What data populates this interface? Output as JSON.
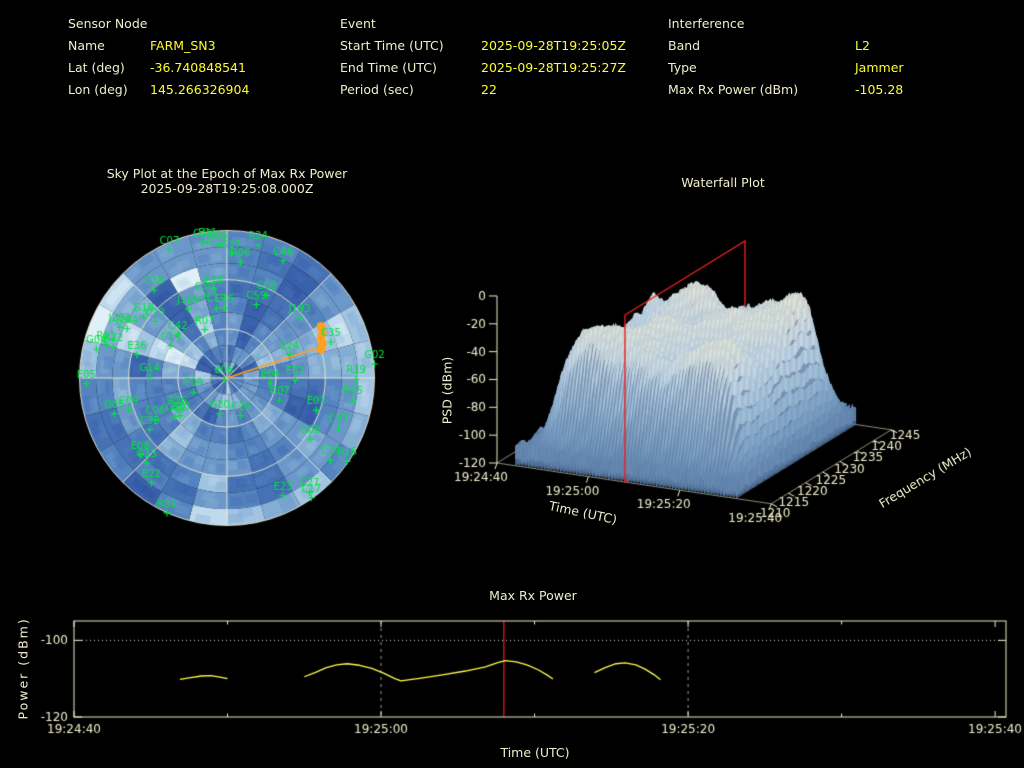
{
  "header": {
    "sections": [
      {
        "title": "Sensor Node",
        "rows": [
          {
            "label": "Name",
            "value": "FARM_SN3"
          },
          {
            "label": "Lat (deg)",
            "value": "-36.740848541"
          },
          {
            "label": "Lon (deg)",
            "value": "145.266326904"
          }
        ]
      },
      {
        "title": "Event",
        "rows": [
          {
            "label": "Start Time (UTC)",
            "value": "2025-09-28T19:25:05Z"
          },
          {
            "label": "End Time (UTC)",
            "value": "2025-09-28T19:25:27Z"
          },
          {
            "label": "Period (sec)",
            "value": "22"
          }
        ]
      },
      {
        "title": "Interference",
        "rows": [
          {
            "label": "Band",
            "value": "L2"
          },
          {
            "label": "Type",
            "value": "Jammer"
          },
          {
            "label": "Max Rx Power (dBm)",
            "value": "-105.28"
          }
        ]
      }
    ]
  },
  "colors": {
    "label_text": "#f0eecb",
    "value_text": "#fdfd2f",
    "axis": "#eeeccb",
    "satellite_green": "#00e541",
    "jammer_orange": "#ffa01e",
    "event_red": "#ea1e1e",
    "line_yellow": "#fcfc4a"
  },
  "chart_data": [
    {
      "type": "scatter",
      "title": "Sky Plot at the Epoch of Max Rx Power",
      "epoch_label": "2025-09-28T19:25:08.000Z",
      "projection": "polar-sky",
      "elevation_rings_deg": [
        0,
        30,
        60
      ],
      "azimuth_spokes_deg": [
        0,
        45,
        90,
        135,
        180,
        225,
        270,
        315
      ],
      "jammer": {
        "line_from": [
          0,
          0
        ],
        "line_to": [
          0.641,
          -0.214
        ],
        "blob": [
          0.64,
          -0.27
        ]
      },
      "mosaic": {
        "seed": 1337,
        "sectors": 24,
        "rings": 9,
        "palette": [
          "#27418f",
          "#30519f",
          "#3a62ac",
          "#4672b5",
          "#5583bf",
          "#6b97c9",
          "#84add4",
          "#a0c4e1",
          "#c0daed",
          "#e0f0f8"
        ],
        "streaks": [
          {
            "az": 65,
            "w": 12,
            "boost": 0.45
          },
          {
            "az": 300,
            "w": 11,
            "boost": 0.22
          },
          {
            "az": 183,
            "w": 9,
            "boost": 0.25
          },
          {
            "az": 345,
            "w": 8,
            "boost": 0.2
          },
          {
            "az": 135,
            "w": 9,
            "boost": 0.12
          },
          {
            "az": 225,
            "w": 8,
            "boost": 0.15
          }
        ]
      },
      "satellites": [
        {
          "id": "C07",
          "x": -0.39,
          "y": -0.87
        },
        {
          "id": "C49",
          "x": -0.163,
          "y": -0.915
        },
        {
          "id": "E11",
          "x": -0.131,
          "y": -0.92
        },
        {
          "id": "C05",
          "x": -0.061,
          "y": -0.904
        },
        {
          "id": "G17",
          "x": 0.027,
          "y": -0.843
        },
        {
          "id": "R24",
          "x": 0.21,
          "y": -0.899
        },
        {
          "id": "R06",
          "x": 0.092,
          "y": -0.786
        },
        {
          "id": "C44",
          "x": 0.379,
          "y": -0.795
        },
        {
          "id": "C38",
          "x": -0.495,
          "y": -0.596
        },
        {
          "id": "E18",
          "x": -0.088,
          "y": -0.603
        },
        {
          "id": "C50",
          "x": -0.152,
          "y": -0.556
        },
        {
          "id": "J199",
          "x": -0.262,
          "y": -0.468
        },
        {
          "id": "C19",
          "x": -0.07,
          "y": -0.474
        },
        {
          "id": "C16",
          "x": -0.018,
          "y": -0.474
        },
        {
          "id": "G09",
          "x": 0.27,
          "y": -0.56
        },
        {
          "id": "C59",
          "x": 0.199,
          "y": -0.497
        },
        {
          "id": "J193",
          "x": 0.492,
          "y": -0.407
        },
        {
          "id": "C35",
          "x": 0.705,
          "y": -0.244
        },
        {
          "id": "E24",
          "x": 0.424,
          "y": -0.158
        },
        {
          "id": "G02",
          "x": 1.0,
          "y": -0.095
        },
        {
          "id": "R19",
          "x": 0.875,
          "y": 0.01
        },
        {
          "id": "R25",
          "x": 0.854,
          "y": 0.151
        },
        {
          "id": "E31",
          "x": 0.463,
          "y": 0.016
        },
        {
          "id": "E04",
          "x": 0.294,
          "y": 0.034
        },
        {
          "id": "G07",
          "x": 0.357,
          "y": 0.151
        },
        {
          "id": "E01",
          "x": 0.605,
          "y": 0.219
        },
        {
          "id": "C45",
          "x": 0.757,
          "y": 0.339
        },
        {
          "id": "G08",
          "x": 0.565,
          "y": 0.414
        },
        {
          "id": "C29",
          "x": 0.7,
          "y": 0.559
        },
        {
          "id": "R16",
          "x": 0.814,
          "y": 0.565
        },
        {
          "id": "E23",
          "x": 0.38,
          "y": 0.798
        },
        {
          "id": "C27",
          "x": 0.56,
          "y": 0.776
        },
        {
          "id": "C17",
          "x": 0.572,
          "y": 0.812
        },
        {
          "id": "R01",
          "x": -0.407,
          "y": 0.915
        },
        {
          "id": "E22",
          "x": -0.513,
          "y": 0.712
        },
        {
          "id": "G15",
          "x": -0.542,
          "y": 0.576
        },
        {
          "id": "E08",
          "x": -0.588,
          "y": 0.52
        },
        {
          "id": "C33",
          "x": -0.524,
          "y": 0.35
        },
        {
          "id": "C06",
          "x": -0.486,
          "y": 0.287
        },
        {
          "id": "E30",
          "x": -0.316,
          "y": 0.255
        },
        {
          "id": "R26",
          "x": -0.335,
          "y": 0.215
        },
        {
          "id": "C40",
          "x": -0.35,
          "y": 0.264
        },
        {
          "id": "C09",
          "x": -0.667,
          "y": 0.215
        },
        {
          "id": "G05",
          "x": -0.764,
          "y": 0.242
        },
        {
          "id": "E05",
          "x": -0.954,
          "y": 0.038
        },
        {
          "id": "G30",
          "x": -0.05,
          "y": 0.242
        },
        {
          "id": "C26",
          "x": 0.095,
          "y": 0.255
        },
        {
          "id": "E09",
          "x": -0.226,
          "y": 0.097
        },
        {
          "id": "E06",
          "x": -0.02,
          "y": 0.01
        },
        {
          "id": "G14",
          "x": -0.524,
          "y": -0.004
        },
        {
          "id": "E36",
          "x": -0.61,
          "y": -0.158
        },
        {
          "id": "C14",
          "x": -0.38,
          "y": -0.219
        },
        {
          "id": "C42",
          "x": -0.334,
          "y": -0.294
        },
        {
          "id": "R07",
          "x": -0.151,
          "y": -0.328
        },
        {
          "id": "G18",
          "x": -0.565,
          "y": -0.413
        },
        {
          "id": "C13",
          "x": -0.486,
          "y": -0.383
        },
        {
          "id": "J202",
          "x": -0.728,
          "y": -0.343
        },
        {
          "id": "J204",
          "x": -0.678,
          "y": -0.334
        },
        {
          "id": "R11",
          "x": -0.818,
          "y": -0.226
        },
        {
          "id": "R22",
          "x": -0.77,
          "y": -0.21
        },
        {
          "id": "G04",
          "x": -0.886,
          "y": -0.195
        }
      ]
    },
    {
      "type": "heatmap",
      "title": "Waterfall Plot",
      "xlabel": "Time (UTC)",
      "ylabel": "Frequency (MHz)",
      "zlabel": "PSD (dBm)",
      "time_ticks": [
        {
          "t": 0,
          "label": "19:24:40"
        },
        {
          "t": 20,
          "label": "19:25:00"
        },
        {
          "t": 40,
          "label": "19:25:20"
        },
        {
          "t": 60,
          "label": "19:25:40"
        }
      ],
      "freq_ticks": [
        1210,
        1215,
        1220,
        1225,
        1230,
        1235,
        1240,
        1245
      ],
      "psd_ticks": [
        0,
        -20,
        -40,
        -60,
        -80,
        -100,
        -120
      ],
      "time_range_sec": [
        0,
        60
      ],
      "freq_range_mhz": [
        1210,
        1245
      ],
      "psd_range_dbm": [
        -120,
        0
      ],
      "slice_time_sec": 28,
      "slice_label": "19:25:08",
      "surface": {
        "seed": 4242,
        "noise_floor_dbm": -109,
        "plateau_peak_dbm": -12,
        "event_window_sec": [
          9,
          49
        ],
        "band_mhz": [
          1213,
          1242
        ],
        "data_span_sec": [
          4,
          53
        ],
        "color_stops": [
          [
            -120,
            "#51719b"
          ],
          [
            -95,
            "#7da3c8"
          ],
          [
            -70,
            "#a9c8e0"
          ],
          [
            -45,
            "#d3e4ef"
          ],
          [
            -28,
            "#e9efe6"
          ],
          [
            -12,
            "#f8f3da"
          ]
        ]
      }
    },
    {
      "type": "line",
      "title": "Max Rx Power",
      "xlabel": "Time (UTC)",
      "ylabel": "Power (dBm)",
      "x_ticks": [
        {
          "t": 0,
          "label": "19:24:40"
        },
        {
          "t": 20,
          "label": "19:25:00"
        },
        {
          "t": 40,
          "label": "19:25:20"
        },
        {
          "t": 60,
          "label": "19:25:40"
        }
      ],
      "x_minor_ticks_sec": [
        10,
        30,
        50
      ],
      "y_ticks": [
        -100,
        -120
      ],
      "ylim": [
        -120,
        -95
      ],
      "xlim_sec": [
        0,
        60.7
      ],
      "hline_dotted_dbm": -100,
      "gridline_dashed_sec": [
        20,
        40
      ],
      "event_marker_sec": 28,
      "max_power_dbm": -105.28,
      "series_dbm": [
        [
          [
            6.9,
            -110.2
          ],
          [
            7.6,
            -109.7
          ],
          [
            8.3,
            -109.3
          ],
          [
            8.9,
            -109.2
          ],
          [
            9.5,
            -109.6
          ],
          [
            10.0,
            -110.0
          ]
        ],
        [
          [
            15.0,
            -109.5
          ],
          [
            15.7,
            -108.4
          ],
          [
            16.4,
            -107.2
          ],
          [
            17.1,
            -106.4
          ],
          [
            17.8,
            -106.1
          ],
          [
            18.6,
            -106.5
          ],
          [
            19.4,
            -107.3
          ],
          [
            20.2,
            -108.6
          ],
          [
            20.9,
            -110.0
          ],
          [
            21.3,
            -110.6
          ],
          [
            22.5,
            -109.9
          ],
          [
            24.0,
            -109.0
          ],
          [
            25.5,
            -108.0
          ],
          [
            26.8,
            -106.9
          ],
          [
            27.6,
            -105.8
          ],
          [
            28.1,
            -105.3
          ],
          [
            28.8,
            -105.6
          ],
          [
            29.5,
            -106.4
          ],
          [
            30.2,
            -107.6
          ],
          [
            30.8,
            -109.0
          ],
          [
            31.2,
            -110.1
          ]
        ],
        [
          [
            33.9,
            -108.4
          ],
          [
            34.6,
            -107.1
          ],
          [
            35.3,
            -106.1
          ],
          [
            35.9,
            -105.9
          ],
          [
            36.6,
            -106.4
          ],
          [
            37.2,
            -107.5
          ],
          [
            37.8,
            -109.0
          ],
          [
            38.2,
            -110.3
          ]
        ]
      ]
    }
  ]
}
